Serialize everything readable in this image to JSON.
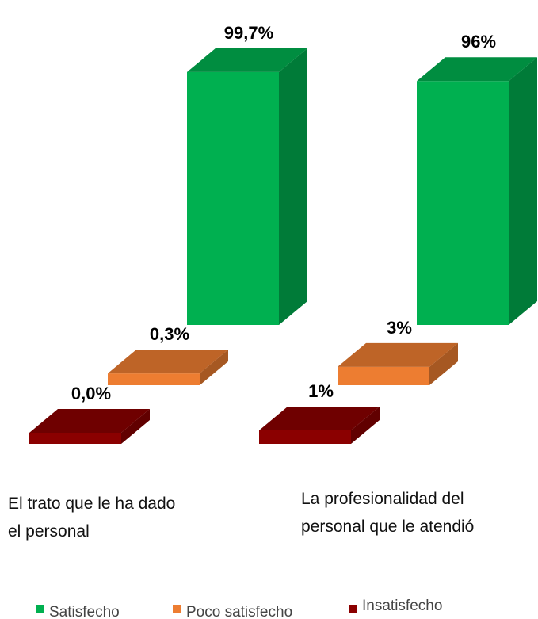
{
  "chart_data": {
    "type": "bar3d",
    "categories": [
      "El trato que le ha dado el personal",
      "La profesionalidad del personal que le atendió"
    ],
    "series": [
      {
        "name": "Satisfecho",
        "color": "#00b050",
        "values": [
          99.7,
          96
        ],
        "value_labels": [
          "99,7%",
          "96%"
        ]
      },
      {
        "name": "Poco satisfecho",
        "color": "#ed7d31",
        "values": [
          0.3,
          3
        ],
        "value_labels": [
          "0,3%",
          "3%"
        ]
      },
      {
        "name": "Insatisfecho",
        "color": "#8b0000",
        "values": [
          0,
          1
        ],
        "value_labels": [
          "0,0%",
          "1%"
        ]
      }
    ],
    "ylim": [
      0,
      100
    ]
  }
}
